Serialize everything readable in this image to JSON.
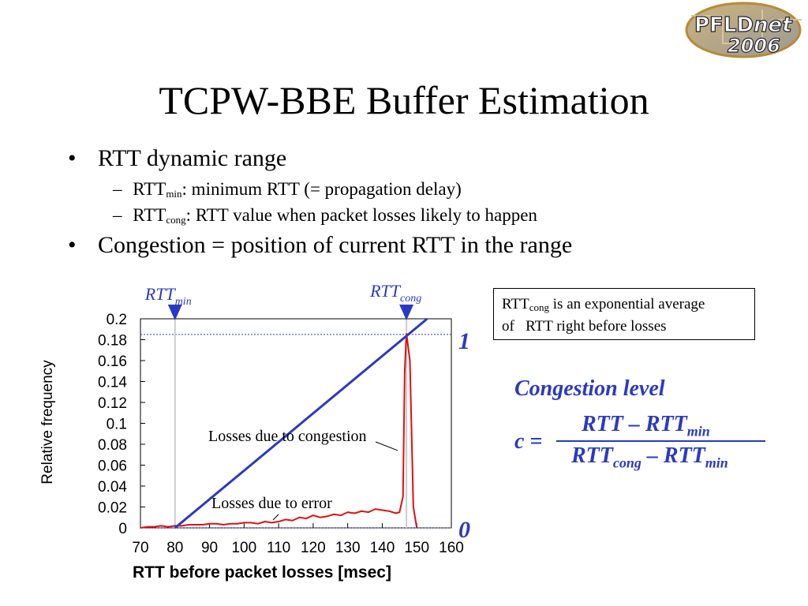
{
  "slide": {
    "title": "TCPW-BBE Buffer Estimation",
    "logo": {
      "line1_a": "PFLD",
      "line1_b": "net",
      "line2": "2006"
    },
    "bullets": [
      {
        "text": "RTT dynamic range"
      },
      {
        "text": "Congestion = position of current RTT in the range"
      }
    ],
    "sub_bullets": [
      {
        "base": "RTT",
        "subscript": "min",
        "rest": ": minimum RTT (= propagation delay)"
      },
      {
        "base": "RTT",
        "subscript": "cong",
        "rest": ": RTT value when packet losses likely to happen"
      }
    ],
    "note_box": {
      "base": "RTT",
      "subscript": "cong",
      "line1_rest": " is an exponential average",
      "line2": "of   RTT right before losses"
    },
    "formula": {
      "heading": "Congestion level",
      "lhs": "c =",
      "num_base": "RTT – RTT",
      "num_sub": "min",
      "den_base1": "RTT",
      "den_sub1": "cong",
      "den_mid": " – RTT",
      "den_sub2": "min"
    }
  },
  "chart_data": {
    "type": "line",
    "xlabel": "RTT before packet losses [msec]",
    "ylabel": "Relative frequency",
    "xlim": [
      70,
      160
    ],
    "ylim": [
      0,
      0.2
    ],
    "x_ticks": [
      "70",
      "80",
      "90",
      "100",
      "110",
      "120",
      "130",
      "140",
      "150",
      "160"
    ],
    "y_ticks": [
      "0",
      "0.02",
      "0.04",
      "0.06",
      "0.08",
      "0.1",
      "0.12",
      "0.14",
      "0.16",
      "0.18",
      "0.2"
    ],
    "series": [
      {
        "x": [
          70,
          72,
          74,
          76,
          78,
          80,
          82,
          84,
          86,
          88,
          90,
          92,
          94,
          96,
          98,
          100,
          102,
          104,
          106,
          108,
          110,
          112,
          114,
          116,
          118,
          120,
          122,
          124,
          126,
          128,
          130,
          132,
          134,
          136,
          138,
          140,
          142,
          143,
          144,
          145,
          146,
          146.5,
          147,
          148,
          149,
          150
        ],
        "values": [
          0,
          0.001,
          0.001,
          0.002,
          0.001,
          0.002,
          0.002,
          0.003,
          0.003,
          0.003,
          0.004,
          0.004,
          0.003,
          0.004,
          0.004,
          0.005,
          0.005,
          0.004,
          0.006,
          0.005,
          0.006,
          0.008,
          0.007,
          0.01,
          0.009,
          0.012,
          0.01,
          0.011,
          0.013,
          0.012,
          0.015,
          0.014,
          0.016,
          0.015,
          0.018,
          0.017,
          0.016,
          0.015,
          0.014,
          0.015,
          0.03,
          0.15,
          0.186,
          0.16,
          0.02,
          0
        ]
      }
    ],
    "range_line": {
      "x": [
        80,
        153
      ],
      "values": [
        0,
        0.2
      ]
    },
    "rtt_min_x": 80,
    "rtt_cong_x": 147,
    "level_line_y": 0.185,
    "markers": {
      "rtt_min": {
        "base": "RTT",
        "subscript": "min"
      },
      "rtt_cong": {
        "base": "RTT",
        "subscript": "cong"
      },
      "level_1": "1",
      "level_0": "0"
    },
    "annotations": {
      "congestion": "Losses due to congestion",
      "error": "Losses due to error"
    },
    "colors": {
      "data": "#e01010",
      "range": "#2a39c4",
      "level": "#2a39c4"
    }
  }
}
